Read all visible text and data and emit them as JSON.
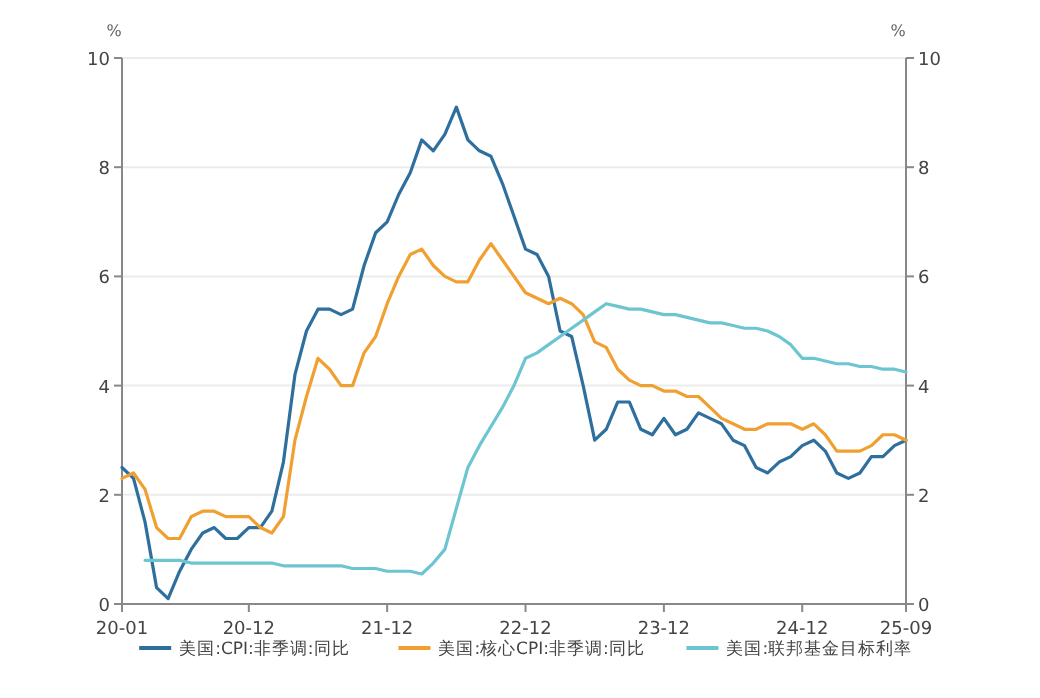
{
  "chart_data": {
    "type": "line",
    "ylabel": "%",
    "y2label": "%",
    "categories": [
      "20-01",
      null,
      null,
      null,
      null,
      null,
      null,
      null,
      null,
      null,
      null,
      "20-12",
      null,
      null,
      null,
      null,
      null,
      null,
      null,
      null,
      null,
      null,
      null,
      "21-12",
      null,
      null,
      null,
      null,
      null,
      null,
      null,
      null,
      null,
      null,
      null,
      "22-12",
      null,
      null,
      null,
      null,
      null,
      null,
      null,
      null,
      null,
      null,
      null,
      "23-12",
      null,
      null,
      null,
      null,
      null,
      null,
      null,
      null,
      null,
      null,
      null,
      "24-12",
      null,
      null,
      null,
      null,
      null,
      null,
      null,
      null,
      "25-09"
    ],
    "series": [
      {
        "name": "美国:CPI:非季调:同比",
        "color": "#2e6f9e",
        "values": [
          2.5,
          2.3,
          1.5,
          0.3,
          0.1,
          0.6,
          1.0,
          1.3,
          1.4,
          1.2,
          1.2,
          1.4,
          1.4,
          1.7,
          2.6,
          4.2,
          5.0,
          5.4,
          5.4,
          5.3,
          5.4,
          6.2,
          6.8,
          7.0,
          7.5,
          7.9,
          8.5,
          8.3,
          8.6,
          9.1,
          8.5,
          8.3,
          8.2,
          7.7,
          7.1,
          6.5,
          6.4,
          6.0,
          5.0,
          4.9,
          4.0,
          3.0,
          3.2,
          3.7,
          3.7,
          3.2,
          3.1,
          3.4,
          3.1,
          3.2,
          3.5,
          3.4,
          3.3,
          3.0,
          2.9,
          2.5,
          2.4,
          2.6,
          2.7,
          2.9,
          3.0,
          2.8,
          2.4,
          2.3,
          2.4,
          2.7,
          2.7,
          2.9,
          3.0
        ]
      },
      {
        "name": "美国:核心CPI:非季调:同比",
        "color": "#f0a030",
        "values": [
          2.3,
          2.4,
          2.1,
          1.4,
          1.2,
          1.2,
          1.6,
          1.7,
          1.7,
          1.6,
          1.6,
          1.6,
          1.4,
          1.3,
          1.6,
          3.0,
          3.8,
          4.5,
          4.3,
          4.0,
          4.0,
          4.6,
          4.9,
          5.5,
          6.0,
          6.4,
          6.5,
          6.2,
          6.0,
          5.9,
          5.9,
          6.3,
          6.6,
          6.3,
          6.0,
          5.7,
          5.6,
          5.5,
          5.6,
          5.5,
          5.3,
          4.8,
          4.7,
          4.3,
          4.1,
          4.0,
          4.0,
          3.9,
          3.9,
          3.8,
          3.8,
          3.6,
          3.4,
          3.3,
          3.2,
          3.2,
          3.3,
          3.3,
          3.3,
          3.2,
          3.3,
          3.1,
          2.8,
          2.8,
          2.8,
          2.9,
          3.1,
          3.1,
          3.0
        ]
      },
      {
        "name": "美国:联邦基金目标利率",
        "color": "#6cc5d0",
        "values": [
          null,
          null,
          0.8,
          0.8,
          0.8,
          0.8,
          0.75,
          0.75,
          0.75,
          0.75,
          0.75,
          0.75,
          0.75,
          0.75,
          0.7,
          0.7,
          0.7,
          0.7,
          0.7,
          0.7,
          0.65,
          0.65,
          0.65,
          0.6,
          0.6,
          0.6,
          0.55,
          0.75,
          1.0,
          1.75,
          2.5,
          2.9,
          3.25,
          3.6,
          4.0,
          4.5,
          4.6,
          4.75,
          4.9,
          5.05,
          5.2,
          5.35,
          5.5,
          5.45,
          5.4,
          5.4,
          5.35,
          5.3,
          5.3,
          5.25,
          5.2,
          5.15,
          5.15,
          5.1,
          5.05,
          5.05,
          5.0,
          4.9,
          4.75,
          4.5,
          4.5,
          4.45,
          4.4,
          4.4,
          4.35,
          4.35,
          4.3,
          4.3,
          4.25
        ]
      }
    ],
    "ylim": [
      0,
      10
    ],
    "yticks": [
      0,
      2,
      4,
      6,
      8,
      10
    ],
    "y2lim": [
      0,
      10
    ],
    "y2ticks": [
      0,
      2,
      4,
      6,
      8,
      10
    ],
    "grid": "y",
    "legend": "bottom",
    "marker": "none",
    "line_style": "solid"
  }
}
